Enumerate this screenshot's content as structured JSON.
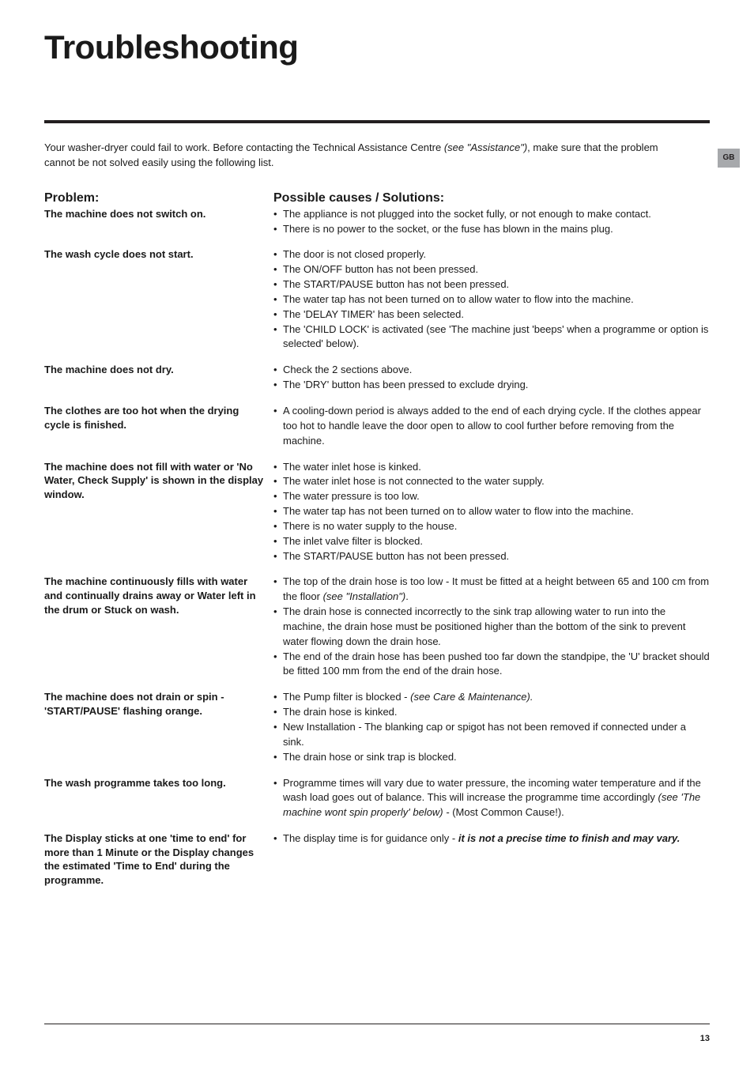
{
  "page": {
    "title": "Troubleshooting",
    "intro_pre": "Your washer-dryer could fail to work. Before contacting the Technical Assistance Centre ",
    "intro_ital": "(see \"Assistance\")",
    "intro_post": ", make sure that the problem cannot be not solved easily using the following list.",
    "side_tab": "GB",
    "problem_header": "Problem:",
    "solutions_header": "Possible causes / Solutions:",
    "page_number": "13",
    "hr_color": "#231f20",
    "tab_bg": "#a7a9ac"
  },
  "rows": [
    {
      "problem": "The machine does not switch on.",
      "solutions": [
        {
          "text": "The appliance is not plugged into the socket fully, or not enough to make contact."
        },
        {
          "text": "There is no power to the socket, or the fuse has blown in the mains plug."
        }
      ]
    },
    {
      "problem": "The wash cycle does not start.",
      "solutions": [
        {
          "text": "The door is not closed properly."
        },
        {
          "text": "The ON/OFF button has not been pressed."
        },
        {
          "text": "The START/PAUSE button has not been pressed."
        },
        {
          "text": "The water tap has not been turned on to allow water to flow into the machine."
        },
        {
          "text": "The 'DELAY TIMER' has been selected."
        },
        {
          "text": "The 'CHILD LOCK' is activated  (see 'The machine just 'beeps' when a programme or option is selected' below)."
        }
      ]
    },
    {
      "problem": "The machine does not dry.",
      "solutions": [
        {
          "text": "Check the 2 sections above."
        },
        {
          "text": "The 'DRY' button has been pressed to exclude drying."
        }
      ]
    },
    {
      "problem": "The clothes are too hot when the drying cycle is finished.",
      "solutions": [
        {
          "text": "A cooling-down period is always added to the end of each drying cycle.  If the clothes appear too hot to handle leave the door open to allow to cool further before removing from the machine."
        }
      ]
    },
    {
      "problem": "The machine does not fill with water or 'No Water, Check Supply' is shown in the display window.",
      "solutions": [
        {
          "text": "The water inlet hose is kinked."
        },
        {
          "text": "The water inlet hose is not connected to the water supply."
        },
        {
          "text": "The water pressure is too low."
        },
        {
          "text": "The water tap has not been turned on to allow water to flow into the machine."
        },
        {
          "text": "There is no water supply to the house."
        },
        {
          "text": "The inlet  valve filter is blocked."
        },
        {
          "text": "The START/PAUSE button has not been pressed."
        }
      ]
    },
    {
      "problem": "The machine continuously fills with water and continually drains away or Water left in the drum or Stuck on wash.",
      "solutions": [
        {
          "pre": "The top of the drain hose is too low - It must be fitted at a height between 65 and 100 cm from the floor ",
          "ital": "(see \"Installation\")",
          "post": "."
        },
        {
          "pre": "The drain hose is connected incorrectly to the sink trap allowing water to run into the machine, the drain hose must be positioned higher than the bottom of the sink to prevent water flowing down the drain hose",
          "ital": ".",
          "post": ""
        },
        {
          "text": "The end of the drain hose has been pushed too far down the standpipe, the 'U' bracket should be fitted 100 mm from the end of the drain hose."
        }
      ]
    },
    {
      "problem": "The machine does not drain or spin - 'START/PAUSE' flashing orange.",
      "solutions": [
        {
          "pre": "The Pump filter is blocked - ",
          "ital": "(see Care & Maintenance).",
          "post": ""
        },
        {
          "text": "The drain hose is kinked."
        },
        {
          "text": "New Installation -  The blanking cap or spigot has not been removed if connected under a sink."
        },
        {
          "text": "The drain hose or sink trap is blocked."
        }
      ]
    },
    {
      "problem": "The wash programme takes too long.",
      "solutions": [
        {
          "pre": "Programme times will vary due to water pressure, the incoming water temperature and if the wash load goes out of balance. This will increase the programme time accordingly ",
          "ital": "(see 'The machine wont spin properly' below) - ",
          "post": " (Most Common Cause!)."
        }
      ]
    },
    {
      "problem": "The Display sticks at one 'time to end'  for more than 1 Minute or the Display changes the estimated 'Time to End' during the programme.",
      "solutions": [
        {
          "pre": "The display time is for guidance only  -  ",
          "bolditalic": "it is not a precise time to finish and may vary.",
          "post": ""
        }
      ]
    }
  ]
}
